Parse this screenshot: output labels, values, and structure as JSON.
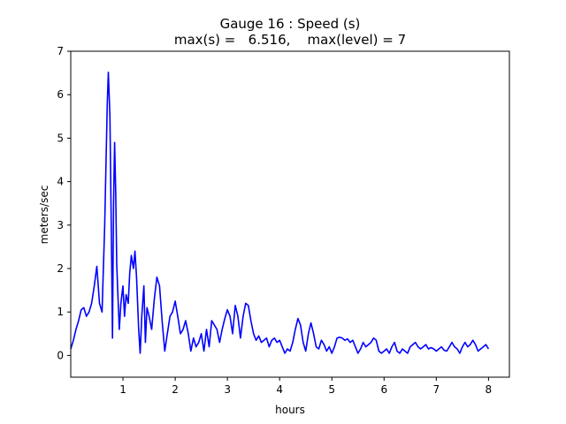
{
  "chart_data": {
    "type": "line",
    "title": "Gauge 16 : Speed (s)",
    "subtitle": "max(s) =   6.516,    max(level) = 7",
    "xlabel": "hours",
    "ylabel": "meters/sec",
    "xlim": [
      0.0,
      8.4
    ],
    "ylim": [
      -0.5,
      7.0
    ],
    "xticks": [
      1,
      2,
      3,
      4,
      5,
      6,
      7,
      8
    ],
    "yticks": [
      0,
      1,
      2,
      3,
      4,
      5,
      6,
      7
    ],
    "grid": false,
    "colors": {
      "series": "#0000ff",
      "axes": "#000000",
      "background": "#ffffff"
    },
    "series": [
      {
        "x": [
          0.0,
          0.05,
          0.1,
          0.15,
          0.2,
          0.25,
          0.3,
          0.35,
          0.4,
          0.45,
          0.5,
          0.55,
          0.6,
          0.65,
          0.7,
          0.72,
          0.75,
          0.78,
          0.8,
          0.82,
          0.84,
          0.86,
          0.88,
          0.9,
          0.93,
          0.96,
          1.0,
          1.03,
          1.06,
          1.1,
          1.13,
          1.16,
          1.2,
          1.23,
          1.26,
          1.3,
          1.33,
          1.36,
          1.4,
          1.43,
          1.46,
          1.5,
          1.55,
          1.6,
          1.65,
          1.7,
          1.75,
          1.8,
          1.85,
          1.9,
          1.95,
          2.0,
          2.05,
          2.1,
          2.15,
          2.2,
          2.25,
          2.3,
          2.35,
          2.4,
          2.45,
          2.5,
          2.55,
          2.6,
          2.65,
          2.7,
          2.75,
          2.8,
          2.85,
          2.9,
          2.95,
          3.0,
          3.05,
          3.1,
          3.15,
          3.2,
          3.25,
          3.3,
          3.35,
          3.4,
          3.45,
          3.5,
          3.55,
          3.6,
          3.65,
          3.7,
          3.75,
          3.8,
          3.85,
          3.9,
          3.95,
          4.0,
          4.05,
          4.1,
          4.15,
          4.2,
          4.25,
          4.3,
          4.35,
          4.4,
          4.45,
          4.5,
          4.55,
          4.6,
          4.65,
          4.7,
          4.75,
          4.8,
          4.85,
          4.9,
          4.95,
          5.0,
          5.05,
          5.1,
          5.15,
          5.2,
          5.25,
          5.3,
          5.35,
          5.4,
          5.45,
          5.5,
          5.55,
          5.6,
          5.65,
          5.7,
          5.75,
          5.8,
          5.85,
          5.9,
          5.95,
          6.0,
          6.05,
          6.1,
          6.15,
          6.2,
          6.25,
          6.3,
          6.35,
          6.4,
          6.45,
          6.5,
          6.55,
          6.6,
          6.65,
          6.7,
          6.75,
          6.8,
          6.85,
          6.9,
          6.95,
          7.0,
          7.05,
          7.1,
          7.15,
          7.2,
          7.25,
          7.3,
          7.35,
          7.4,
          7.45,
          7.5,
          7.55,
          7.6,
          7.65,
          7.7,
          7.75,
          7.8,
          7.85,
          7.9,
          7.95,
          8.0
        ],
        "y": [
          0.15,
          0.35,
          0.6,
          0.8,
          1.05,
          1.1,
          0.9,
          1.0,
          1.2,
          1.6,
          2.05,
          1.2,
          1.0,
          3.0,
          5.8,
          6.516,
          5.5,
          2.5,
          0.4,
          3.5,
          4.9,
          3.8,
          2.1,
          1.5,
          0.6,
          1.2,
          1.6,
          0.9,
          1.4,
          1.2,
          1.9,
          2.3,
          2.0,
          2.4,
          1.8,
          0.6,
          0.05,
          0.9,
          1.6,
          0.3,
          1.1,
          0.9,
          0.6,
          1.3,
          1.8,
          1.6,
          0.8,
          0.1,
          0.5,
          0.9,
          1.0,
          1.25,
          0.9,
          0.5,
          0.6,
          0.8,
          0.5,
          0.1,
          0.4,
          0.2,
          0.3,
          0.5,
          0.1,
          0.6,
          0.2,
          0.8,
          0.7,
          0.6,
          0.3,
          0.6,
          0.85,
          1.05,
          0.9,
          0.5,
          1.15,
          0.9,
          0.4,
          0.9,
          1.2,
          1.15,
          0.8,
          0.5,
          0.35,
          0.45,
          0.3,
          0.35,
          0.4,
          0.2,
          0.35,
          0.4,
          0.3,
          0.35,
          0.2,
          0.05,
          0.15,
          0.1,
          0.3,
          0.6,
          0.85,
          0.7,
          0.3,
          0.1,
          0.5,
          0.75,
          0.5,
          0.2,
          0.15,
          0.35,
          0.25,
          0.1,
          0.2,
          0.05,
          0.2,
          0.4,
          0.42,
          0.4,
          0.35,
          0.38,
          0.3,
          0.35,
          0.2,
          0.05,
          0.15,
          0.3,
          0.2,
          0.25,
          0.3,
          0.4,
          0.35,
          0.1,
          0.05,
          0.1,
          0.15,
          0.05,
          0.2,
          0.3,
          0.1,
          0.05,
          0.15,
          0.1,
          0.05,
          0.2,
          0.25,
          0.3,
          0.2,
          0.15,
          0.2,
          0.25,
          0.15,
          0.18,
          0.15,
          0.1,
          0.15,
          0.2,
          0.12,
          0.1,
          0.2,
          0.3,
          0.2,
          0.15,
          0.05,
          0.2,
          0.3,
          0.2,
          0.25,
          0.35,
          0.25,
          0.1,
          0.15,
          0.2,
          0.25,
          0.15
        ]
      }
    ]
  }
}
